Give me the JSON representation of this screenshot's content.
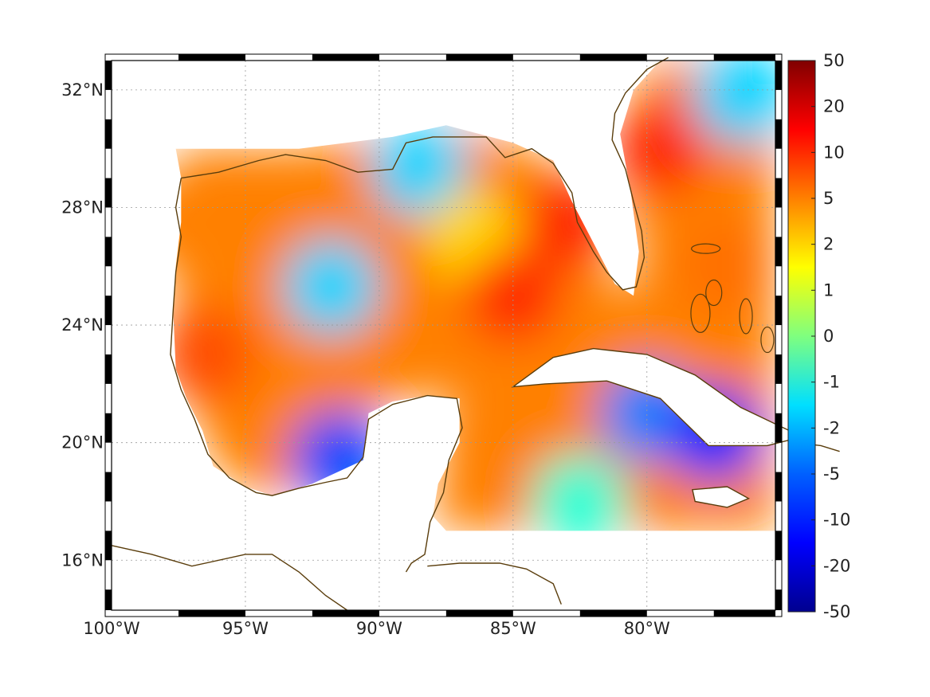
{
  "map": {
    "lat_labels": [
      {
        "lat": 32,
        "text": "32°N"
      },
      {
        "lat": 28,
        "text": "28°N"
      },
      {
        "lat": 24,
        "text": "24°N"
      },
      {
        "lat": 20,
        "text": "20°N"
      },
      {
        "lat": 16,
        "text": "16°N"
      }
    ],
    "lon_labels": [
      {
        "lon": -100,
        "text": "100°W"
      },
      {
        "lon": -95,
        "text": "95°W"
      },
      {
        "lon": -90,
        "text": "90°W"
      },
      {
        "lon": -85,
        "text": "85°W"
      },
      {
        "lon": -80,
        "text": "80°W"
      }
    ],
    "extent": {
      "lon_min": -100,
      "lon_max": -75.2,
      "lat_min": 14.3,
      "lat_max": 33
    },
    "coastline_color": "#5a3d0c",
    "grid": true
  },
  "colorbar": {
    "ticks": [
      "50",
      "20",
      "10",
      "5",
      "2",
      "1",
      "0",
      "-1",
      "-2",
      "-5",
      "-10",
      "-20",
      "-50"
    ],
    "colormap": "jet"
  },
  "chart_data": {
    "type": "heatmap",
    "description_of_field": "gridded values over Gulf of Mexico / Caribbean",
    "value_ticks": [
      50,
      20,
      10,
      5,
      2,
      1,
      0,
      -1,
      -2,
      -5,
      -10,
      -20,
      -50
    ],
    "regions": [
      {
        "lon": -96.5,
        "lat": 23.0,
        "value": 8
      },
      {
        "lon": -97.5,
        "lat": 27.5,
        "value": 5
      },
      {
        "lon": -91.8,
        "lat": 25.3,
        "value": -2
      },
      {
        "lon": -91.5,
        "lat": 19.5,
        "value": -8
      },
      {
        "lon": -88.5,
        "lat": 29.3,
        "value": -2
      },
      {
        "lon": -86.5,
        "lat": 27.0,
        "value": 2
      },
      {
        "lon": -85.0,
        "lat": 25.0,
        "value": 10
      },
      {
        "lon": -83.0,
        "lat": 27.5,
        "value": 10
      },
      {
        "lon": -79.5,
        "lat": 30.0,
        "value": 10
      },
      {
        "lon": -76.5,
        "lat": 31.8,
        "value": -2
      },
      {
        "lon": -77.0,
        "lat": 26.0,
        "value": 6
      },
      {
        "lon": -80.0,
        "lat": 21.0,
        "value": -5
      },
      {
        "lon": -77.5,
        "lat": 20.3,
        "value": -10
      },
      {
        "lon": -82.5,
        "lat": 18.0,
        "value": -1
      },
      {
        "lon": -86.0,
        "lat": 20.0,
        "value": 5
      }
    ]
  }
}
